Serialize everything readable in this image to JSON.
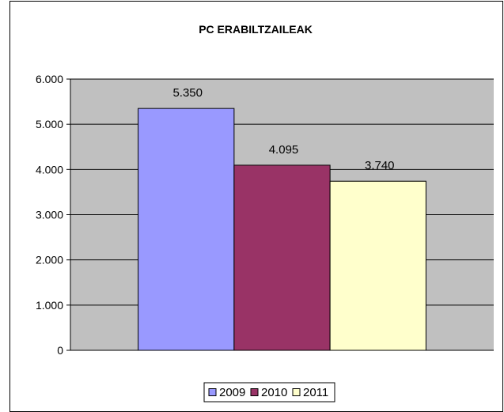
{
  "chart_data": {
    "type": "bar",
    "title": "PC ERABILTZAILEAK",
    "categories": [
      ""
    ],
    "series": [
      {
        "name": "2009",
        "values": [
          5350
        ],
        "label": "5.350",
        "color": "#9999ff"
      },
      {
        "name": "2010",
        "values": [
          4095
        ],
        "label": "4.095",
        "color": "#993366"
      },
      {
        "name": "2011",
        "values": [
          3740
        ],
        "label": "3.740",
        "color": "#ffffcc"
      }
    ],
    "ylim": [
      0,
      6000
    ],
    "yticks": [
      0,
      1000,
      2000,
      3000,
      4000,
      5000,
      6000
    ],
    "ytick_labels": [
      "0",
      "1.000",
      "2.000",
      "3.000",
      "4.000",
      "5.000",
      "6.000"
    ],
    "grid": true,
    "plot_background": "#c0c0c0",
    "legend_position": "bottom"
  }
}
